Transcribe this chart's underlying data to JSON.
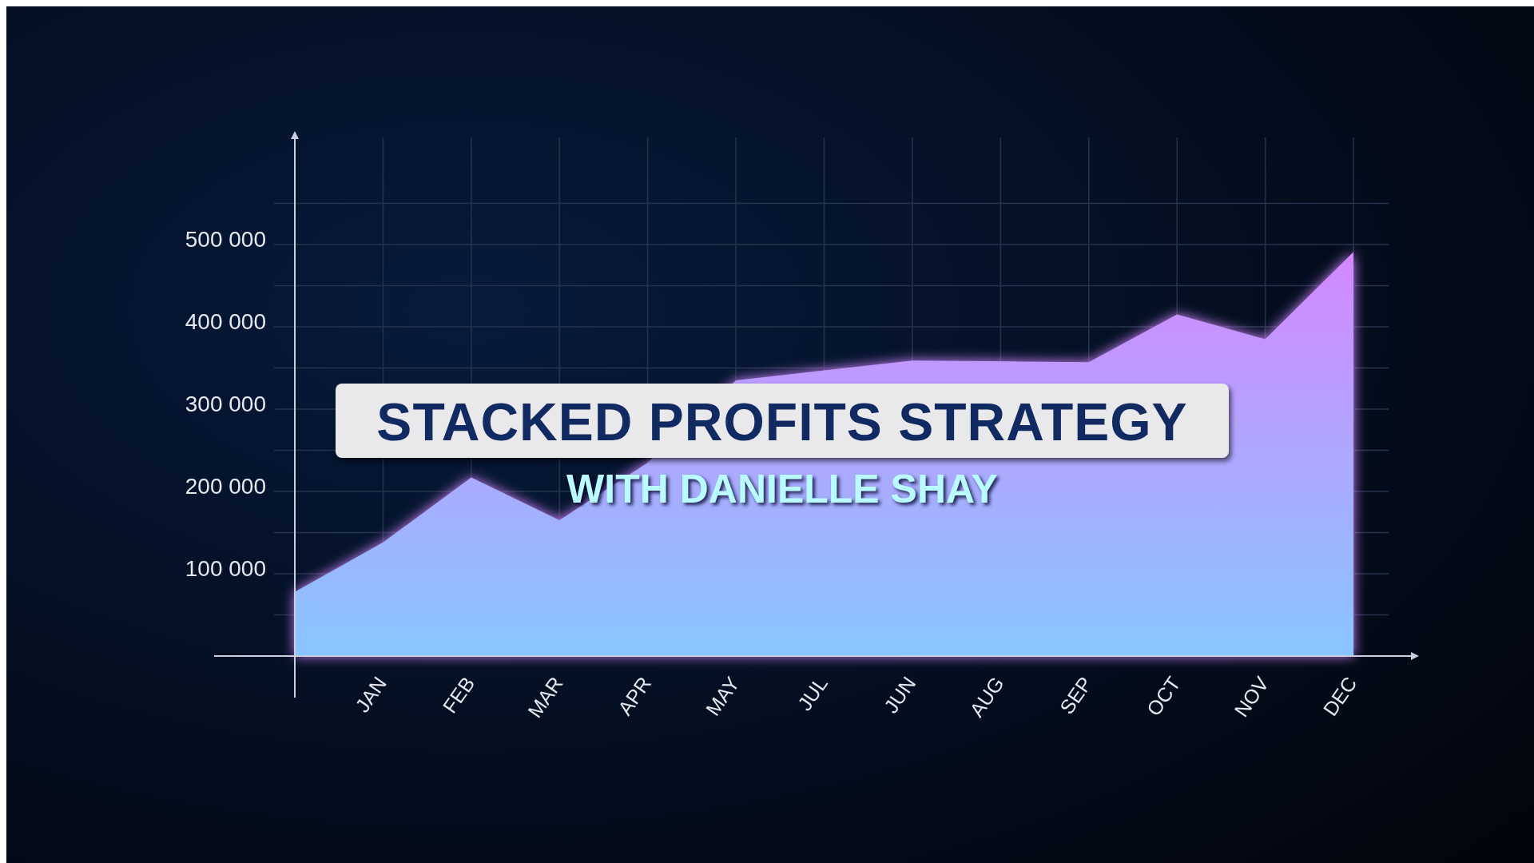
{
  "chart_data": {
    "type": "area",
    "title": "STACKED PROFITS STRATEGY",
    "subtitle": "WITH DANIELLE SHAY",
    "categories": [
      null,
      "JAN",
      "FEB",
      "MAR",
      "APR",
      "MAY",
      "JUL",
      "JUN",
      "AUG",
      "SEP",
      "OCT",
      "NOV",
      "DEC"
    ],
    "series": [
      {
        "color": "#8f88ff",
        "values": [
          78000,
          138000,
          217000,
          165000,
          235000,
          335000,
          null,
          359000,
          null,
          357000,
          415000,
          385000,
          491000
        ]
      }
    ],
    "ylim": [
      0,
      630000
    ],
    "yticks": [
      {
        "value": 50000,
        "label": null
      },
      "100 000",
      {
        "value": 150000,
        "label": null
      },
      200000,
      {
        "value": 250000,
        "label": null
      },
      300000,
      {
        "value": 350000,
        "label": null
      },
      400000,
      {
        "value": 450000,
        "label": null
      },
      500000,
      {
        "value": 550000,
        "label": null
      }
    ],
    "grid": true
  }
}
